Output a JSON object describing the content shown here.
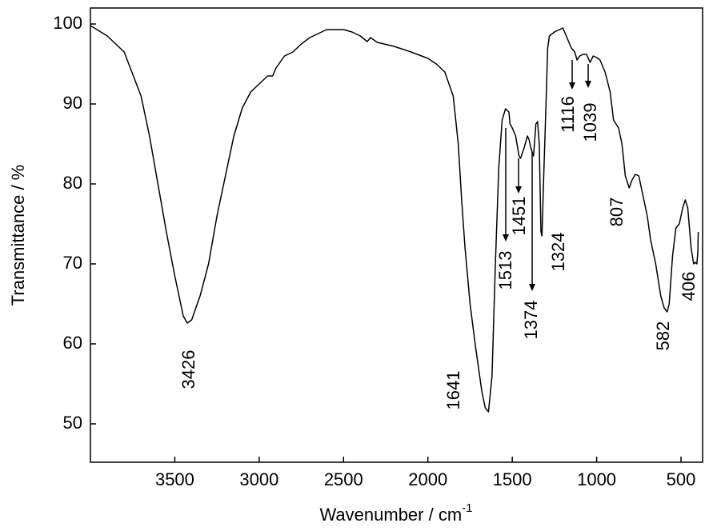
{
  "chart_data": {
    "type": "line",
    "x_label": {
      "text": "Wavenumber / cm",
      "superscript": "-1"
    },
    "y_label": "Transmittance / %",
    "xlim": [
      4000,
      372
    ],
    "ylim": [
      45.2,
      102
    ],
    "xticks": [
      3500,
      3000,
      2500,
      2000,
      1500,
      1000,
      500
    ],
    "yticks": [
      50,
      60,
      70,
      80,
      90,
      100
    ],
    "x": [
      4000,
      3900,
      3800,
      3700,
      3650,
      3600,
      3550,
      3500,
      3450,
      3426,
      3400,
      3350,
      3300,
      3250,
      3200,
      3150,
      3100,
      3050,
      3000,
      2950,
      2920,
      2900,
      2850,
      2800,
      2750,
      2700,
      2600,
      2500,
      2450,
      2400,
      2360,
      2340,
      2300,
      2200,
      2100,
      2000,
      1950,
      1900,
      1850,
      1820,
      1800,
      1780,
      1750,
      1720,
      1700,
      1680,
      1660,
      1641,
      1620,
      1600,
      1580,
      1560,
      1540,
      1520,
      1513,
      1500,
      1480,
      1460,
      1451,
      1430,
      1410,
      1400,
      1390,
      1374,
      1360,
      1350,
      1340,
      1330,
      1324,
      1315,
      1300,
      1290,
      1280,
      1250,
      1220,
      1200,
      1180,
      1150,
      1130,
      1116,
      1100,
      1080,
      1060,
      1039,
      1020,
      1000,
      980,
      950,
      920,
      900,
      870,
      850,
      830,
      807,
      790,
      770,
      750,
      720,
      700,
      680,
      650,
      620,
      600,
      582,
      570,
      550,
      530,
      510,
      490,
      475,
      460,
      440,
      425,
      415,
      406,
      400,
      398
    ],
    "series": [
      {
        "color": "#000000",
        "values": [
          99.8,
          98.5,
          96.5,
          91,
          86,
          80,
          74,
          68.5,
          63.5,
          62.6,
          63,
          66,
          70,
          76,
          81,
          86,
          89.5,
          91.5,
          92.5,
          93.5,
          93.5,
          94.5,
          96,
          96.5,
          97.5,
          98.3,
          99.3,
          99.3,
          99,
          98.5,
          97.8,
          98.3,
          97.7,
          97.2,
          96.5,
          95.7,
          95,
          94,
          91,
          85,
          78,
          72,
          65,
          60,
          57,
          54,
          52,
          51.5,
          56,
          70,
          82,
          88,
          89.4,
          89,
          87.5,
          87,
          86,
          83.5,
          83.2,
          84.5,
          86,
          85.5,
          84.5,
          83.5,
          87.5,
          87.8,
          85,
          74,
          73.5,
          80,
          90,
          97,
          98.5,
          99,
          99.3,
          99.5,
          98.5,
          97,
          96.5,
          95.5,
          96,
          96.2,
          96.2,
          95.2,
          96,
          95.8,
          95.5,
          94,
          91.5,
          88,
          87,
          85,
          81,
          79.5,
          80.5,
          81.2,
          81,
          78,
          76,
          73,
          70,
          66,
          64.5,
          64,
          65,
          71,
          74.5,
          75,
          77,
          78,
          77,
          72,
          70,
          70.2,
          70,
          71.5,
          74
        ]
      }
    ],
    "annotations": [
      "3426",
      "1641",
      "1513",
      "1451",
      "1374",
      "1324",
      "1116",
      "1039",
      "807",
      "582",
      "406"
    ]
  }
}
